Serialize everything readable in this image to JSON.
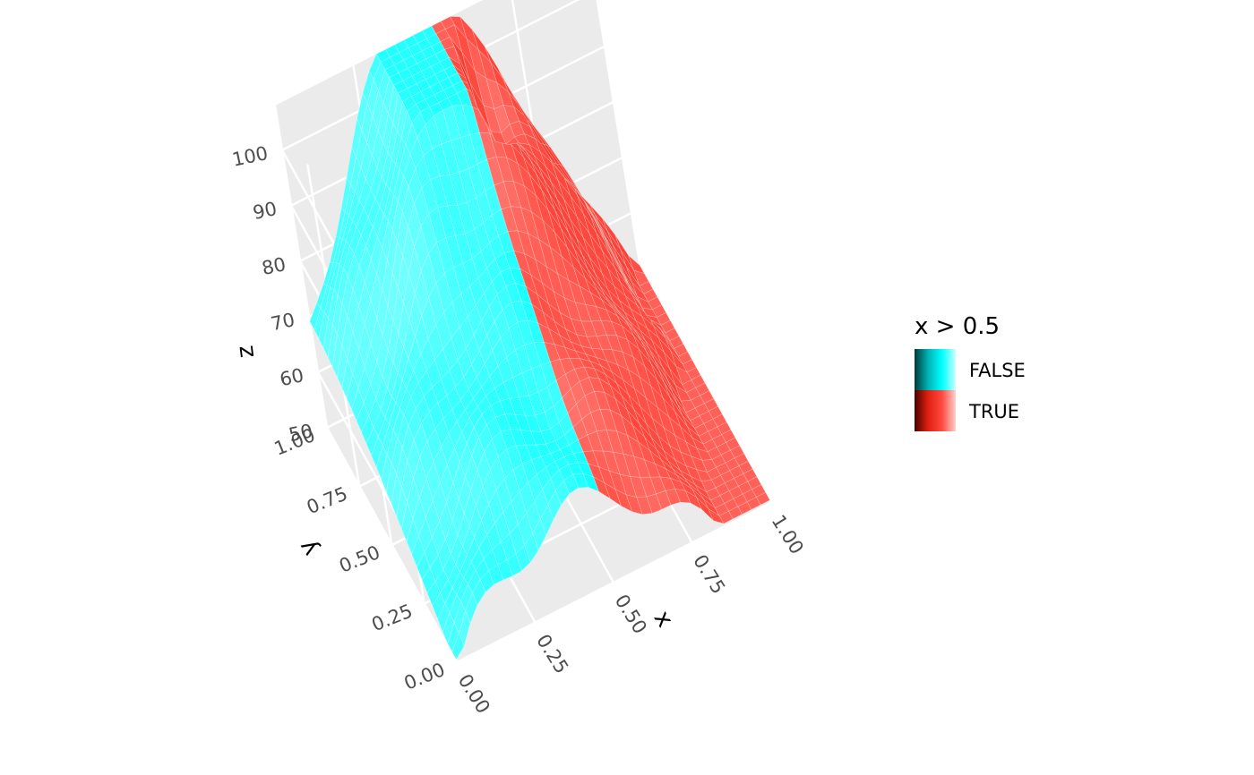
{
  "chart_data": {
    "type": "surface",
    "title": "",
    "xlabel": "x",
    "ylabel": "y",
    "zlabel": "z",
    "xlim": [
      0,
      1
    ],
    "ylim": [
      0,
      1
    ],
    "zlim": [
      50,
      108
    ],
    "x_ticks": [
      "0.00",
      "0.25",
      "0.50",
      "0.75",
      "1.00"
    ],
    "y_ticks": [
      "0.00",
      "0.25",
      "0.50",
      "0.75",
      "1.00"
    ],
    "z_ticks": [
      "50",
      "60",
      "70",
      "80",
      "90",
      "100"
    ],
    "grid": true,
    "legend": {
      "title": "x > 0.5",
      "position": "right",
      "entries": [
        {
          "label": "FALSE",
          "colors": [
            "#003a3a",
            "#00b4b4",
            "#00ffff",
            "#c8ffff"
          ]
        },
        {
          "label": "TRUE",
          "colors": [
            "#4a0000",
            "#e02010",
            "#ff4a40",
            "#ffd0cc"
          ]
        }
      ]
    },
    "fill_variable": "x > 0.5",
    "series": [
      {
        "name": "FALSE",
        "x_range": [
          0,
          0.5
        ]
      },
      {
        "name": "TRUE",
        "x_range": [
          0.5,
          1
        ]
      }
    ]
  }
}
